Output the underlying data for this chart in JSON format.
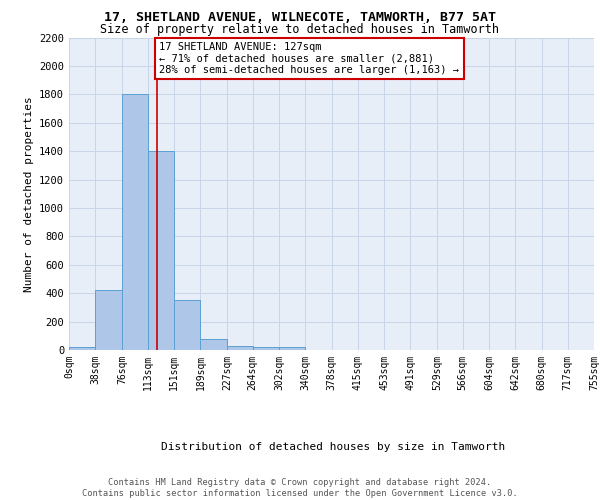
{
  "title1": "17, SHETLAND AVENUE, WILNECOTE, TAMWORTH, B77 5AT",
  "title2": "Size of property relative to detached houses in Tamworth",
  "xlabel": "Distribution of detached houses by size in Tamworth",
  "ylabel": "Number of detached properties",
  "bin_edges": [
    0,
    38,
    76,
    113,
    151,
    189,
    227,
    264,
    302,
    340,
    378,
    415,
    453,
    491,
    529,
    566,
    604,
    642,
    680,
    717,
    755
  ],
  "bar_heights": [
    20,
    420,
    1800,
    1400,
    350,
    80,
    25,
    20,
    20,
    0,
    0,
    0,
    0,
    0,
    0,
    0,
    0,
    0,
    0,
    0
  ],
  "bar_color": "#aec6e8",
  "bar_edge_color": "#5a9fd4",
  "property_size": 127,
  "property_line_color": "#cc0000",
  "annotation_text": "17 SHETLAND AVENUE: 127sqm\n← 71% of detached houses are smaller (2,881)\n28% of semi-detached houses are larger (1,163) →",
  "annotation_box_color": "#cc0000",
  "ylim": [
    0,
    2200
  ],
  "grid_color": "#c8d4e8",
  "background_color": "#e8eef8",
  "footer_text": "Contains HM Land Registry data © Crown copyright and database right 2024.\nContains public sector information licensed under the Open Government Licence v3.0.",
  "tick_labels": [
    "0sqm",
    "38sqm",
    "76sqm",
    "113sqm",
    "151sqm",
    "189sqm",
    "227sqm",
    "264sqm",
    "302sqm",
    "340sqm",
    "378sqm",
    "415sqm",
    "453sqm",
    "491sqm",
    "529sqm",
    "566sqm",
    "604sqm",
    "642sqm",
    "680sqm",
    "717sqm",
    "755sqm"
  ],
  "yticks": [
    0,
    200,
    400,
    600,
    800,
    1000,
    1200,
    1400,
    1600,
    1800,
    2000,
    2200
  ],
  "title1_fontsize": 9.5,
  "title2_fontsize": 8.5,
  "ylabel_fontsize": 8,
  "xlabel_fontsize": 8,
  "tick_fontsize": 7,
  "ytick_fontsize": 7.5,
  "annotation_fontsize": 7.5,
  "footer_fontsize": 6.2
}
